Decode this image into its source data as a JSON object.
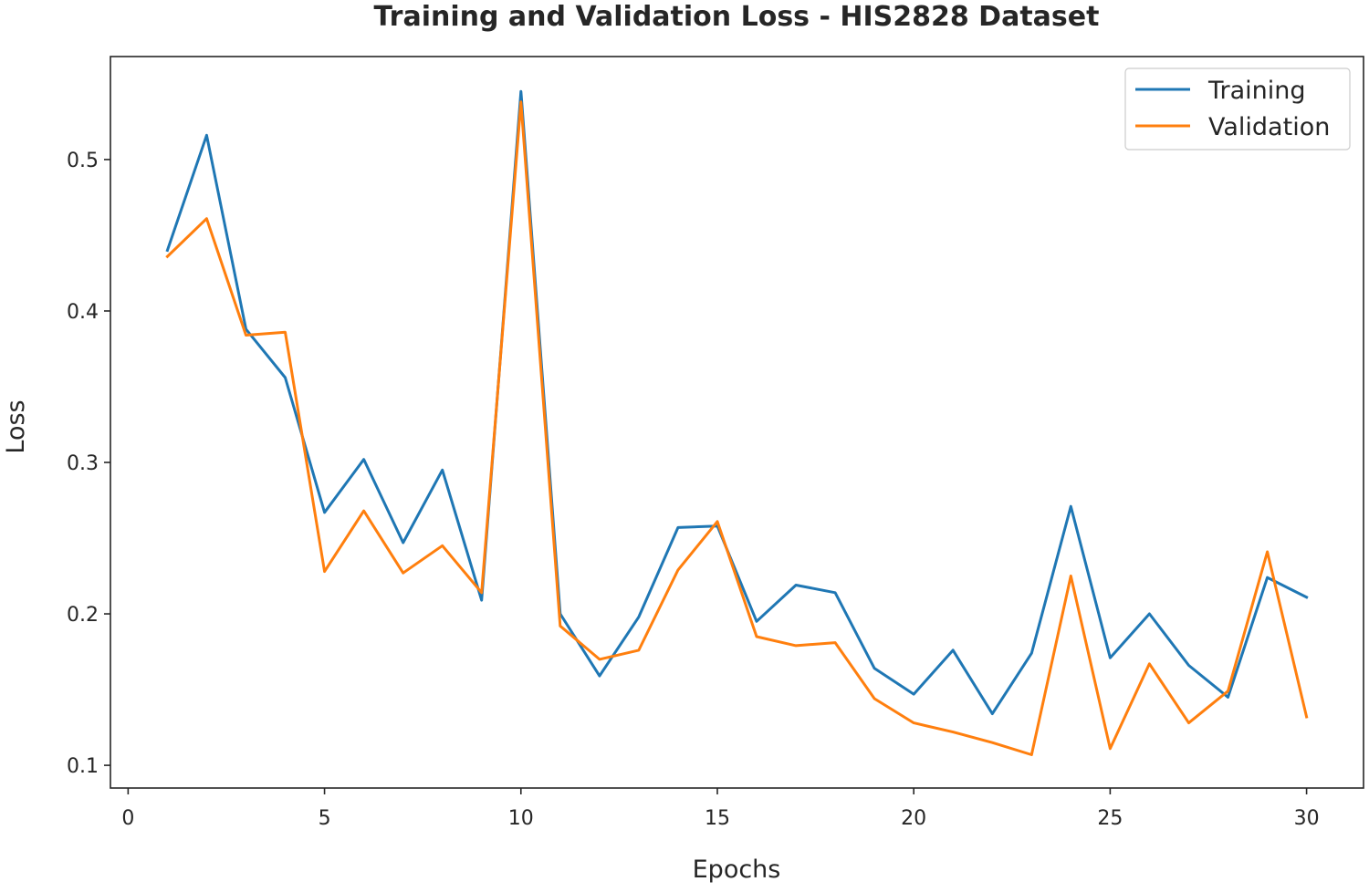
{
  "chart_data": {
    "type": "line",
    "title": "Training and Validation Loss - HIS2828 Dataset",
    "xlabel": "Epochs",
    "ylabel": "Loss",
    "xlim": [
      -0.45,
      31.45
    ],
    "ylim": [
      0.085,
      0.568
    ],
    "xticks": [
      0,
      5,
      10,
      15,
      20,
      25,
      30
    ],
    "yticks": [
      0.1,
      0.2,
      0.3,
      0.4,
      0.5
    ],
    "ytick_labels": [
      "0.1",
      "0.2",
      "0.3",
      "0.4",
      "0.5"
    ],
    "grid": false,
    "legend_position": "top-right",
    "x": [
      1,
      2,
      3,
      4,
      5,
      6,
      7,
      8,
      9,
      10,
      11,
      12,
      13,
      14,
      15,
      16,
      17,
      18,
      19,
      20,
      21,
      22,
      23,
      24,
      25,
      26,
      27,
      28,
      29,
      30
    ],
    "series": [
      {
        "name": "Training",
        "color": "#1f77b4",
        "values": [
          0.44,
          0.516,
          0.388,
          0.356,
          0.267,
          0.302,
          0.247,
          0.295,
          0.209,
          0.545,
          0.2,
          0.159,
          0.198,
          0.257,
          0.258,
          0.195,
          0.219,
          0.214,
          0.164,
          0.147,
          0.176,
          0.134,
          0.174,
          0.271,
          0.171,
          0.2,
          0.166,
          0.145,
          0.224,
          0.211
        ]
      },
      {
        "name": "Validation",
        "color": "#ff7f0e",
        "values": [
          0.436,
          0.461,
          0.384,
          0.386,
          0.228,
          0.268,
          0.227,
          0.245,
          0.214,
          0.538,
          0.192,
          0.17,
          0.176,
          0.229,
          0.261,
          0.185,
          0.179,
          0.181,
          0.144,
          0.128,
          0.122,
          0.115,
          0.107,
          0.225,
          0.111,
          0.167,
          0.128,
          0.149,
          0.241,
          0.132
        ]
      }
    ]
  }
}
